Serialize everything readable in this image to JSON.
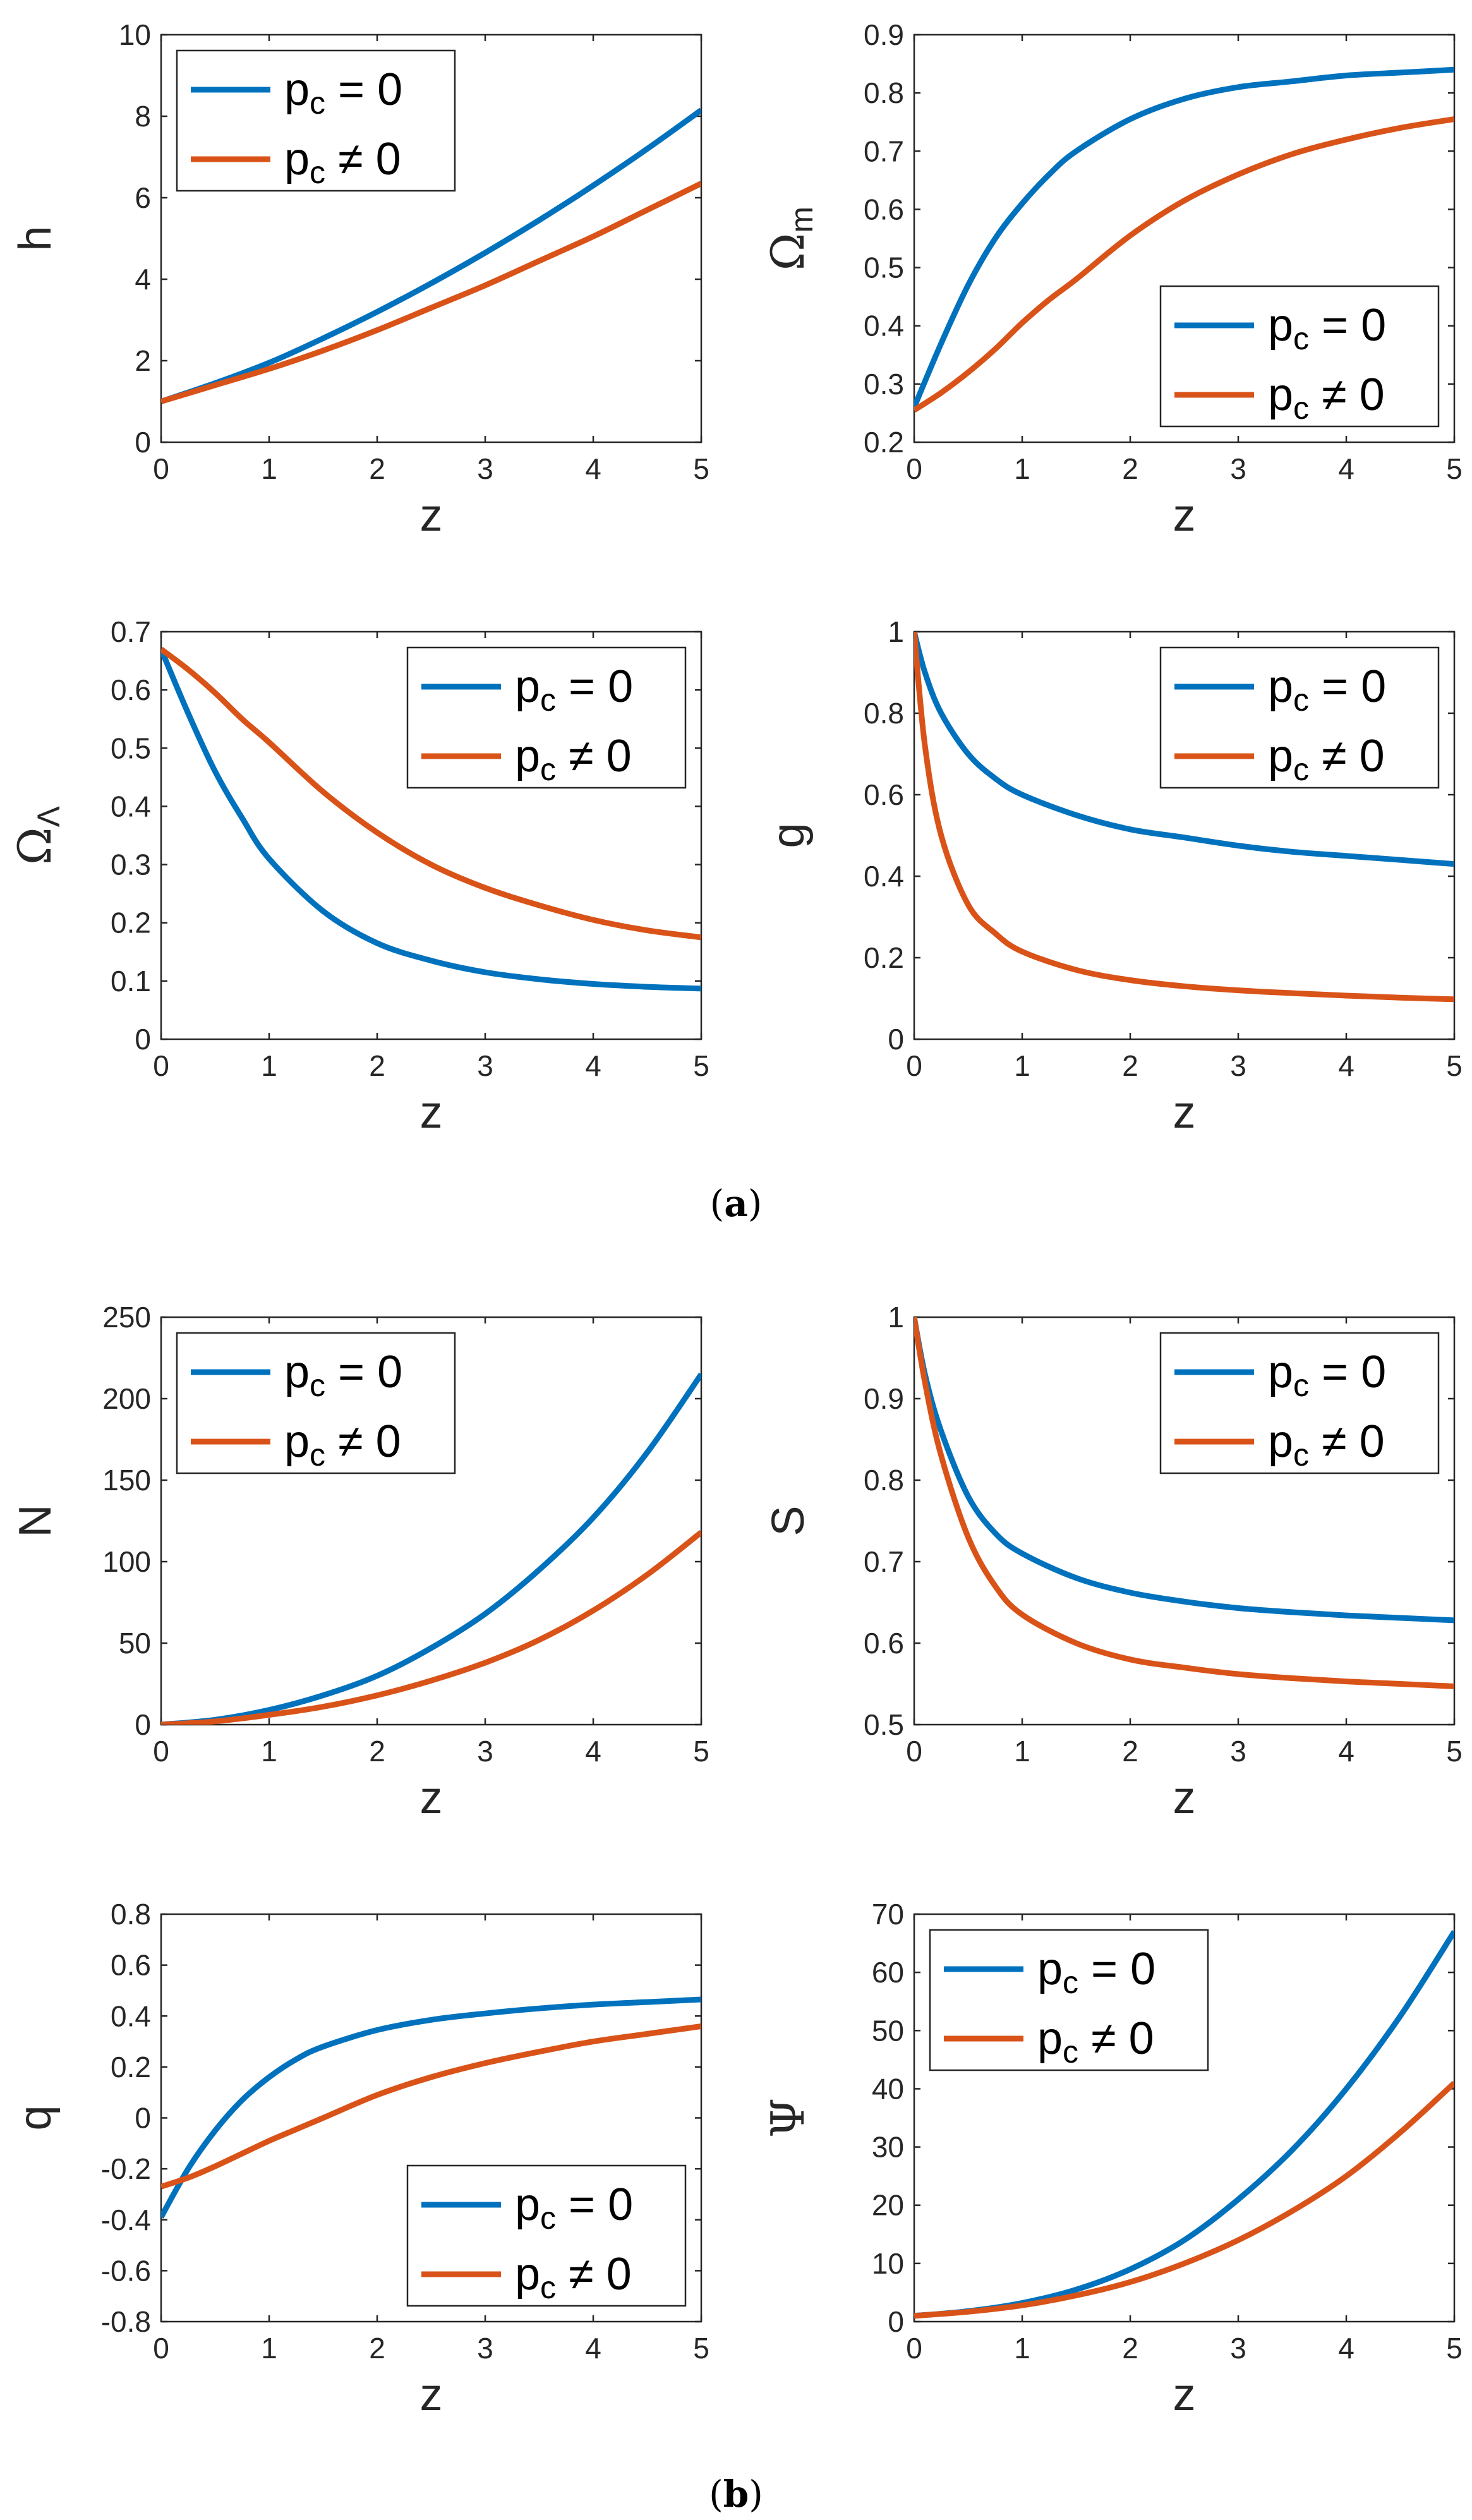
{
  "colors": {
    "blue": "#0072BD",
    "orange": "#D95319",
    "axis": "#262626"
  },
  "captions": {
    "a": "a",
    "b": "b"
  },
  "chart_data": [
    {
      "id": "h",
      "panel": "a",
      "type": "line",
      "xlabel": "z",
      "ylabel": "h",
      "xlim": [
        0,
        5
      ],
      "ylim": [
        0,
        10
      ],
      "xticks": [
        0,
        1,
        2,
        3,
        4,
        5
      ],
      "xtick_labels": [
        "0",
        "1",
        "2",
        "3",
        "4",
        "5"
      ],
      "yticks": [
        0,
        2,
        4,
        6,
        8,
        10
      ],
      "ytick_labels": [
        "0",
        "2",
        "4",
        "6",
        "8",
        "10"
      ],
      "legend_position": "top-left",
      "x": [
        0,
        0.5,
        1,
        1.5,
        2,
        2.5,
        3,
        3.5,
        4,
        4.5,
        5
      ],
      "series": [
        {
          "name": "p_c = 0",
          "label_main": "p",
          "label_sub": "c",
          "label_rest": " = 0",
          "color": "blue",
          "values": [
            1.0,
            1.45,
            1.95,
            2.55,
            3.2,
            3.9,
            4.65,
            5.45,
            6.3,
            7.2,
            8.15
          ]
        },
        {
          "name": "p_c ≠ 0",
          "label_main": "p",
          "label_sub": "c",
          "label_rest": " ≠ 0",
          "color": "orange",
          "values": [
            1.0,
            1.4,
            1.8,
            2.25,
            2.75,
            3.3,
            3.85,
            4.45,
            5.05,
            5.7,
            6.35
          ]
        }
      ]
    },
    {
      "id": "omega_m",
      "panel": "a",
      "type": "line",
      "xlabel": "z",
      "ylabel": "Ω",
      "ylabel_sub": "m",
      "xlim": [
        0,
        5
      ],
      "ylim": [
        0.2,
        0.9
      ],
      "xticks": [
        0,
        1,
        2,
        3,
        4,
        5
      ],
      "xtick_labels": [
        "0",
        "1",
        "2",
        "3",
        "4",
        "5"
      ],
      "yticks": [
        0.2,
        0.3,
        0.4,
        0.5,
        0.6,
        0.7,
        0.8,
        0.9
      ],
      "ytick_labels": [
        "0.2",
        "0.3",
        "0.4",
        "0.5",
        "0.6",
        "0.7",
        "0.8",
        "0.9"
      ],
      "legend_position": "bottom-right",
      "x": [
        0,
        0.25,
        0.5,
        0.75,
        1,
        1.25,
        1.5,
        2,
        2.5,
        3,
        3.5,
        4,
        4.5,
        5
      ],
      "series": [
        {
          "name": "p_c = 0",
          "label_main": "p",
          "label_sub": "c",
          "label_rest": " = 0",
          "color": "blue",
          "values": [
            0.26,
            0.37,
            0.47,
            0.55,
            0.61,
            0.66,
            0.7,
            0.755,
            0.79,
            0.81,
            0.82,
            0.83,
            0.835,
            0.84
          ]
        },
        {
          "name": "p_c ≠ 0",
          "label_main": "p",
          "label_sub": "c",
          "label_rest": " ≠ 0",
          "color": "orange",
          "values": [
            0.255,
            0.285,
            0.32,
            0.36,
            0.405,
            0.445,
            0.48,
            0.555,
            0.615,
            0.66,
            0.695,
            0.72,
            0.74,
            0.755
          ]
        }
      ]
    },
    {
      "id": "omega_lambda",
      "panel": "a",
      "type": "line",
      "xlabel": "z",
      "ylabel": "Ω",
      "ylabel_sub": "Λ",
      "xlim": [
        0,
        5
      ],
      "ylim": [
        0,
        0.7
      ],
      "xticks": [
        0,
        1,
        2,
        3,
        4,
        5
      ],
      "xtick_labels": [
        "0",
        "1",
        "2",
        "3",
        "4",
        "5"
      ],
      "yticks": [
        0,
        0.1,
        0.2,
        0.3,
        0.4,
        0.5,
        0.6,
        0.7
      ],
      "ytick_labels": [
        "0",
        "0.1",
        "0.2",
        "0.3",
        "0.4",
        "0.5",
        "0.6",
        "0.7"
      ],
      "legend_position": "top-right",
      "x": [
        0,
        0.25,
        0.5,
        0.75,
        1,
        1.5,
        2,
        2.5,
        3,
        3.5,
        4,
        4.5,
        5
      ],
      "series": [
        {
          "name": "p_c = 0",
          "label_main": "p",
          "label_sub": "c",
          "label_rest": " = 0",
          "color": "blue",
          "values": [
            0.67,
            0.56,
            0.46,
            0.38,
            0.31,
            0.22,
            0.165,
            0.135,
            0.115,
            0.103,
            0.095,
            0.09,
            0.087
          ]
        },
        {
          "name": "p_c ≠ 0",
          "label_main": "p",
          "label_sub": "c",
          "label_rest": " ≠ 0",
          "color": "orange",
          "values": [
            0.67,
            0.635,
            0.595,
            0.55,
            0.51,
            0.425,
            0.355,
            0.3,
            0.26,
            0.23,
            0.205,
            0.187,
            0.175
          ]
        }
      ]
    },
    {
      "id": "g",
      "panel": "a",
      "type": "line",
      "xlabel": "z",
      "ylabel": "g",
      "xlim": [
        0,
        5
      ],
      "ylim": [
        0,
        1
      ],
      "xticks": [
        0,
        1,
        2,
        3,
        4,
        5
      ],
      "xtick_labels": [
        "0",
        "1",
        "2",
        "3",
        "4",
        "5"
      ],
      "yticks": [
        0,
        0.2,
        0.4,
        0.6,
        0.8,
        1
      ],
      "ytick_labels": [
        "0",
        "0.2",
        "0.4",
        "0.6",
        "0.8",
        "1"
      ],
      "legend_position": "top-right",
      "x": [
        0,
        0.1,
        0.25,
        0.5,
        0.75,
        1,
        1.5,
        2,
        2.5,
        3,
        3.5,
        4,
        4.5,
        5
      ],
      "series": [
        {
          "name": "p_c = 0",
          "label_main": "p",
          "label_sub": "c",
          "label_rest": " = 0",
          "color": "blue",
          "values": [
            1.0,
            0.9,
            0.8,
            0.7,
            0.64,
            0.6,
            0.55,
            0.515,
            0.495,
            0.475,
            0.46,
            0.45,
            0.44,
            0.43
          ]
        },
        {
          "name": "p_c ≠ 0",
          "label_main": "p",
          "label_sub": "c",
          "label_rest": " ≠ 0",
          "color": "orange",
          "values": [
            1.0,
            0.72,
            0.5,
            0.33,
            0.26,
            0.215,
            0.17,
            0.145,
            0.13,
            0.12,
            0.113,
            0.107,
            0.102,
            0.098
          ]
        }
      ]
    },
    {
      "id": "N",
      "panel": "b",
      "type": "line",
      "xlabel": "z",
      "ylabel": "N",
      "xlim": [
        0,
        5
      ],
      "ylim": [
        0,
        250
      ],
      "xticks": [
        0,
        1,
        2,
        3,
        4,
        5
      ],
      "xtick_labels": [
        "0",
        "1",
        "2",
        "3",
        "4",
        "5"
      ],
      "yticks": [
        0,
        50,
        100,
        150,
        200,
        250
      ],
      "ytick_labels": [
        "0",
        "50",
        "100",
        "150",
        "200",
        "250"
      ],
      "legend_position": "top-left",
      "x": [
        0,
        0.5,
        1,
        1.5,
        2,
        2.5,
        3,
        3.5,
        4,
        4.5,
        5
      ],
      "series": [
        {
          "name": "p_c = 0",
          "label_main": "p",
          "label_sub": "c",
          "label_rest": " = 0",
          "color": "blue",
          "values": [
            0,
            3,
            9,
            18,
            30,
            47,
            68,
            95,
            127,
            167,
            215
          ]
        },
        {
          "name": "p_c ≠ 0",
          "label_main": "p",
          "label_sub": "c",
          "label_rest": " ≠ 0",
          "color": "orange",
          "values": [
            0,
            2,
            6,
            11,
            18,
            27,
            38,
            52,
            70,
            92,
            118
          ]
        }
      ]
    },
    {
      "id": "S",
      "panel": "b",
      "type": "line",
      "xlabel": "z",
      "ylabel": "S",
      "xlim": [
        0,
        5
      ],
      "ylim": [
        0.5,
        1
      ],
      "xticks": [
        0,
        1,
        2,
        3,
        4,
        5
      ],
      "xtick_labels": [
        "0",
        "1",
        "2",
        "3",
        "4",
        "5"
      ],
      "yticks": [
        0.5,
        0.6,
        0.7,
        0.8,
        0.9,
        1
      ],
      "ytick_labels": [
        "0.5",
        "0.6",
        "0.7",
        "0.8",
        "0.9",
        "1"
      ],
      "legend_position": "top-right",
      "x": [
        0,
        0.1,
        0.25,
        0.5,
        0.75,
        1,
        1.5,
        2,
        2.5,
        3,
        3.5,
        4,
        4.5,
        5
      ],
      "series": [
        {
          "name": "p_c = 0",
          "label_main": "p",
          "label_sub": "c",
          "label_rest": " = 0",
          "color": "blue",
          "values": [
            1.0,
            0.93,
            0.86,
            0.78,
            0.735,
            0.71,
            0.68,
            0.662,
            0.651,
            0.643,
            0.638,
            0.634,
            0.631,
            0.628
          ]
        },
        {
          "name": "p_c ≠ 0",
          "label_main": "p",
          "label_sub": "c",
          "label_rest": " ≠ 0",
          "color": "orange",
          "values": [
            1.0,
            0.92,
            0.83,
            0.73,
            0.67,
            0.635,
            0.6,
            0.58,
            0.57,
            0.562,
            0.557,
            0.553,
            0.55,
            0.547
          ]
        }
      ]
    },
    {
      "id": "q",
      "panel": "b",
      "type": "line",
      "xlabel": "z",
      "ylabel": "q",
      "xlim": [
        0,
        5
      ],
      "ylim": [
        -0.8,
        0.8
      ],
      "xticks": [
        0,
        1,
        2,
        3,
        4,
        5
      ],
      "xtick_labels": [
        "0",
        "1",
        "2",
        "3",
        "4",
        "5"
      ],
      "yticks": [
        -0.8,
        -0.6,
        -0.4,
        -0.2,
        0,
        0.2,
        0.4,
        0.6,
        0.8
      ],
      "ytick_labels": [
        "-0.8",
        "-0.6",
        "-0.4",
        "-0.2",
        "0",
        "0.2",
        "0.4",
        "0.6",
        "0.8"
      ],
      "legend_position": "bottom-right",
      "x": [
        0,
        0.25,
        0.5,
        0.75,
        1,
        1.25,
        1.5,
        2,
        2.5,
        3,
        3.5,
        4,
        4.5,
        5
      ],
      "series": [
        {
          "name": "p_c = 0",
          "label_main": "p",
          "label_sub": "c",
          "label_rest": " = 0",
          "color": "blue",
          "values": [
            -0.39,
            -0.2,
            -0.05,
            0.07,
            0.16,
            0.23,
            0.28,
            0.345,
            0.385,
            0.41,
            0.43,
            0.445,
            0.455,
            0.465
          ]
        },
        {
          "name": "p_c ≠ 0",
          "label_main": "p",
          "label_sub": "c",
          "label_rest": " ≠ 0",
          "color": "orange",
          "values": [
            -0.27,
            -0.235,
            -0.19,
            -0.14,
            -0.09,
            -0.045,
            0.0,
            0.09,
            0.16,
            0.215,
            0.26,
            0.3,
            0.33,
            0.36
          ]
        }
      ]
    },
    {
      "id": "psi",
      "panel": "b",
      "type": "line",
      "xlabel": "z",
      "ylabel": "Ψ",
      "xlim": [
        0,
        5
      ],
      "ylim": [
        0,
        70
      ],
      "xticks": [
        0,
        1,
        2,
        3,
        4,
        5
      ],
      "xtick_labels": [
        "0",
        "1",
        "2",
        "3",
        "4",
        "5"
      ],
      "yticks": [
        0,
        10,
        20,
        30,
        40,
        50,
        60,
        70
      ],
      "ytick_labels": [
        "0",
        "10",
        "20",
        "30",
        "40",
        "50",
        "60",
        "70"
      ],
      "legend_position": "top-left",
      "x": [
        0,
        0.5,
        1,
        1.5,
        2,
        2.5,
        3,
        3.5,
        4,
        4.5,
        5
      ],
      "series": [
        {
          "name": "p_c = 0",
          "label_main": "p",
          "label_sub": "c",
          "label_rest": " = 0",
          "color": "blue",
          "values": [
            1,
            1.8,
            3.2,
            5.5,
            9,
            14,
            21,
            29.5,
            40,
            52.5,
            67
          ]
        },
        {
          "name": "p_c ≠ 0",
          "label_main": "p",
          "label_sub": "c",
          "label_rest": " ≠ 0",
          "color": "orange",
          "values": [
            1,
            1.7,
            2.8,
            4.5,
            6.8,
            10,
            14,
            19,
            25,
            32.5,
            41
          ]
        }
      ]
    }
  ]
}
